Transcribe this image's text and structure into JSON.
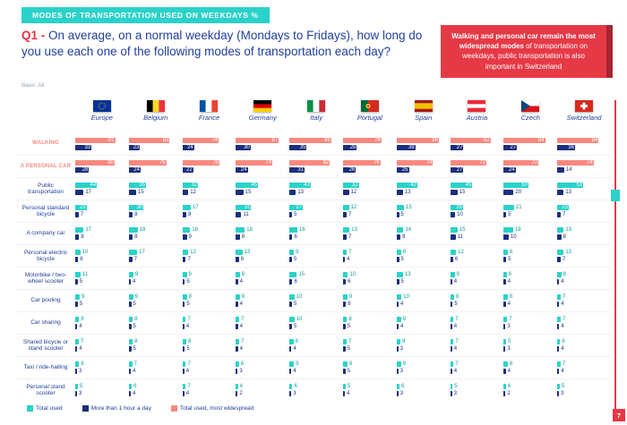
{
  "banner": "MODES OF TRANSPORTATION USED ON WEEKDAYS %",
  "question": {
    "prefix": "Q1 -",
    "text": "On average, on a normal weekday (Mondays to Fridays), how long do you use each one of the following modes of transportation each day?"
  },
  "base": "Base: All",
  "callout": {
    "bold": "Walking and personal car remain the most widespread modes",
    "rest": " of transportation on weekdays, public transportation is also important in Switzerland"
  },
  "page_number": "7",
  "colors": {
    "teal": "#2AD2C9",
    "navy": "#1B2F7E",
    "salmon": "#F8897F",
    "red": "#E63946"
  },
  "legend": [
    {
      "label": "Total used",
      "color": "#2AD2C9"
    },
    {
      "label": "More than 1 hour a day",
      "color": "#1B2F7E"
    },
    {
      "label": "Total used, most widespread",
      "color": "#F8897F"
    }
  ],
  "chart_data": {
    "type": "bar",
    "orientation": "horizontal",
    "units": "%",
    "title": "Modes of transportation used on weekdays %",
    "categories": [
      "Europe",
      "Belgium",
      "France",
      "Germany",
      "Italy",
      "Portugal",
      "Spain",
      "Austria",
      "Czech",
      "Switzerland"
    ],
    "series_names": [
      "Total used",
      "More than 1 hour a day"
    ],
    "rows": [
      {
        "label": "Walking",
        "highlight": true,
        "total_used": [
          81,
          83,
          74,
          87,
          85,
          78,
          86,
          82,
          84,
          84
        ],
        "more_than_1h_a_day": [
          33,
          23,
          24,
          30,
          35,
          28,
          38,
          27,
          27,
          36
        ]
      },
      {
        "label": "A personal car",
        "highlight": true,
        "total_used": [
          80,
          76,
          76,
          74,
          82,
          76,
          74,
          73,
          70,
          74
        ],
        "more_than_1h_a_day": [
          28,
          24,
          22,
          24,
          31,
          26,
          25,
          27,
          24,
          14
        ]
      },
      {
        "label": "Public transportation",
        "highlight": false,
        "total_used": [
          44,
          35,
          32,
          45,
          43,
          32,
          42,
          45,
          50,
          53
        ],
        "more_than_1h_a_day": [
          17,
          15,
          12,
          15,
          13,
          12,
          13,
          15,
          20,
          13
        ]
      },
      {
        "label": "Personal standard bicycle",
        "highlight": false,
        "total_used": [
          23,
          30,
          17,
          31,
          27,
          12,
          15,
          26,
          21,
          23
        ],
        "more_than_1h_a_day": [
          7,
          8,
          8,
          11,
          5,
          7,
          5,
          10,
          5,
          7
        ]
      },
      {
        "label": "A company car",
        "highlight": false,
        "total_used": [
          17,
          18,
          16,
          18,
          16,
          13,
          14,
          15,
          19,
          13
        ],
        "more_than_1h_a_day": [
          8,
          8,
          9,
          8,
          6,
          7,
          8,
          11,
          10,
          8
        ]
      },
      {
        "label": "Personal electric bicycle",
        "highlight": false,
        "total_used": [
          10,
          17,
          12,
          13,
          9,
          7,
          9,
          12,
          8,
          13
        ],
        "more_than_1h_a_day": [
          6,
          7,
          7,
          6,
          5,
          4,
          5,
          6,
          5,
          7
        ]
      },
      {
        "label": "Motorbike / two-wheel scooter",
        "highlight": false,
        "total_used": [
          11,
          9,
          9,
          8,
          15,
          10,
          13,
          9,
          6,
          8
        ],
        "more_than_1h_a_day": [
          5,
          4,
          5,
          4,
          6,
          6,
          5,
          4,
          4,
          4
        ]
      },
      {
        "label": "Car pooling",
        "highlight": false,
        "total_used": [
          9,
          9,
          9,
          8,
          10,
          9,
          10,
          8,
          8,
          7
        ],
        "more_than_1h_a_day": [
          5,
          5,
          5,
          4,
          5,
          6,
          4,
          5,
          4,
          4
        ]
      },
      {
        "label": "Car sharing",
        "highlight": false,
        "total_used": [
          8,
          8,
          7,
          7,
          10,
          8,
          9,
          7,
          7,
          7
        ],
        "more_than_1h_a_day": [
          4,
          5,
          4,
          4,
          5,
          5,
          4,
          4,
          3,
          4
        ]
      },
      {
        "label": "Shared bicycle or stand scooter",
        "highlight": false,
        "total_used": [
          7,
          8,
          8,
          7,
          8,
          7,
          8,
          7,
          5,
          6
        ],
        "more_than_1h_a_day": [
          4,
          5,
          5,
          4,
          4,
          5,
          3,
          4,
          3,
          4
        ]
      },
      {
        "label": "Taxi / ride-hailing",
        "highlight": false,
        "total_used": [
          8,
          7,
          7,
          6,
          9,
          9,
          9,
          7,
          8,
          7
        ],
        "more_than_1h_a_day": [
          3,
          4,
          4,
          3,
          4,
          5,
          3,
          4,
          4,
          4
        ]
      },
      {
        "label": "Personal stand scooter",
        "highlight": false,
        "total_used": [
          5,
          6,
          7,
          4,
          6,
          5,
          6,
          5,
          4,
          5
        ],
        "more_than_1h_a_day": [
          3,
          4,
          4,
          2,
          3,
          4,
          3,
          3,
          2,
          3
        ]
      }
    ]
  }
}
